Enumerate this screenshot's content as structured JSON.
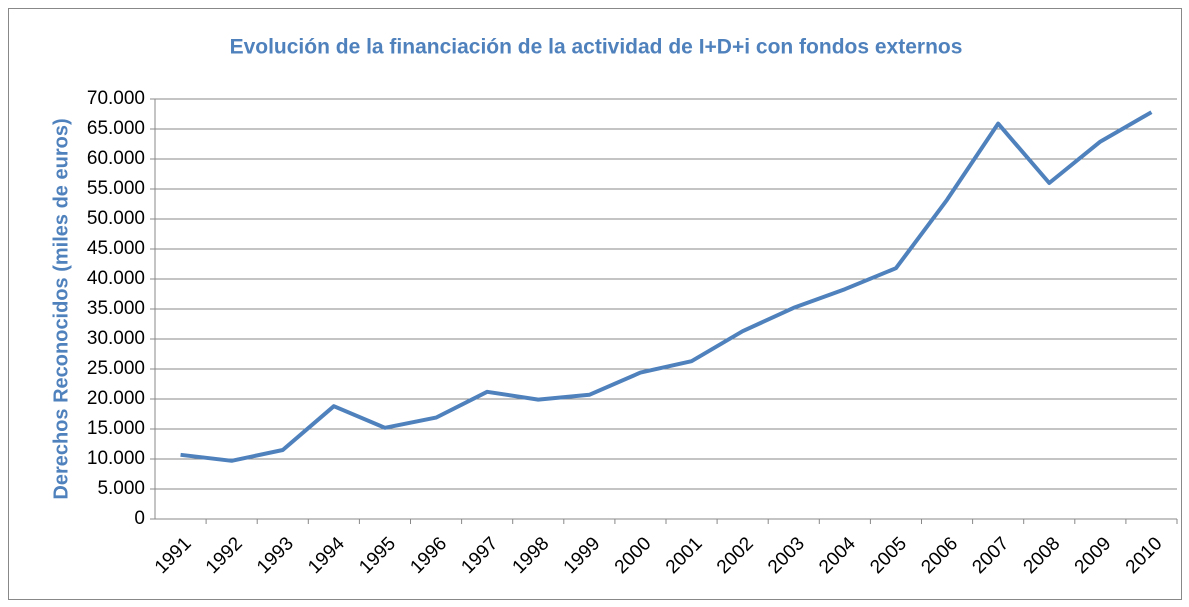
{
  "chart_data": {
    "type": "line",
    "title": "Evolución de la financiación de la actividad de I+D+i con fondos externos",
    "y_label": "Derechos Reconocidos (miles de euros)",
    "categories": [
      "1991",
      "1992",
      "1993",
      "1994",
      "1995",
      "1996",
      "1997",
      "1998",
      "1999",
      "2000",
      "2001",
      "2002",
      "2003",
      "2004",
      "2005",
      "2006",
      "2007",
      "2008",
      "2009",
      "2010"
    ],
    "series": [
      {
        "name": "Derechos Reconocidos",
        "color": "#4f81bd",
        "values": [
          10700,
          9700,
          11500,
          18800,
          15200,
          16900,
          21200,
          19900,
          20700,
          24400,
          26300,
          31300,
          35200,
          38300,
          41800,
          53200,
          65900,
          56000,
          62900,
          67800
        ]
      }
    ],
    "ylim": [
      0,
      70000
    ],
    "yticks": [
      0,
      {
        "value": 5000,
        "label": "5.000"
      },
      {
        "value": 10000,
        "label": "10.000"
      },
      {
        "value": 15000,
        "label": "15.000"
      },
      {
        "value": 20000,
        "label": "20.000"
      },
      {
        "value": 25000,
        "label": "25.000"
      },
      {
        "value": 30000,
        "label": "30.000"
      },
      {
        "value": 35000,
        "label": "35.000"
      },
      {
        "value": 40000,
        "label": "40.000"
      },
      {
        "value": 45000,
        "label": "45.000"
      },
      {
        "value": 50000,
        "label": "50.000"
      },
      {
        "value": 55000,
        "label": "55.000"
      },
      {
        "value": 60000,
        "label": "60.000"
      },
      {
        "value": 65000,
        "label": "65.000"
      },
      {
        "value": 70000,
        "label": "70.000"
      }
    ],
    "grid": true
  }
}
